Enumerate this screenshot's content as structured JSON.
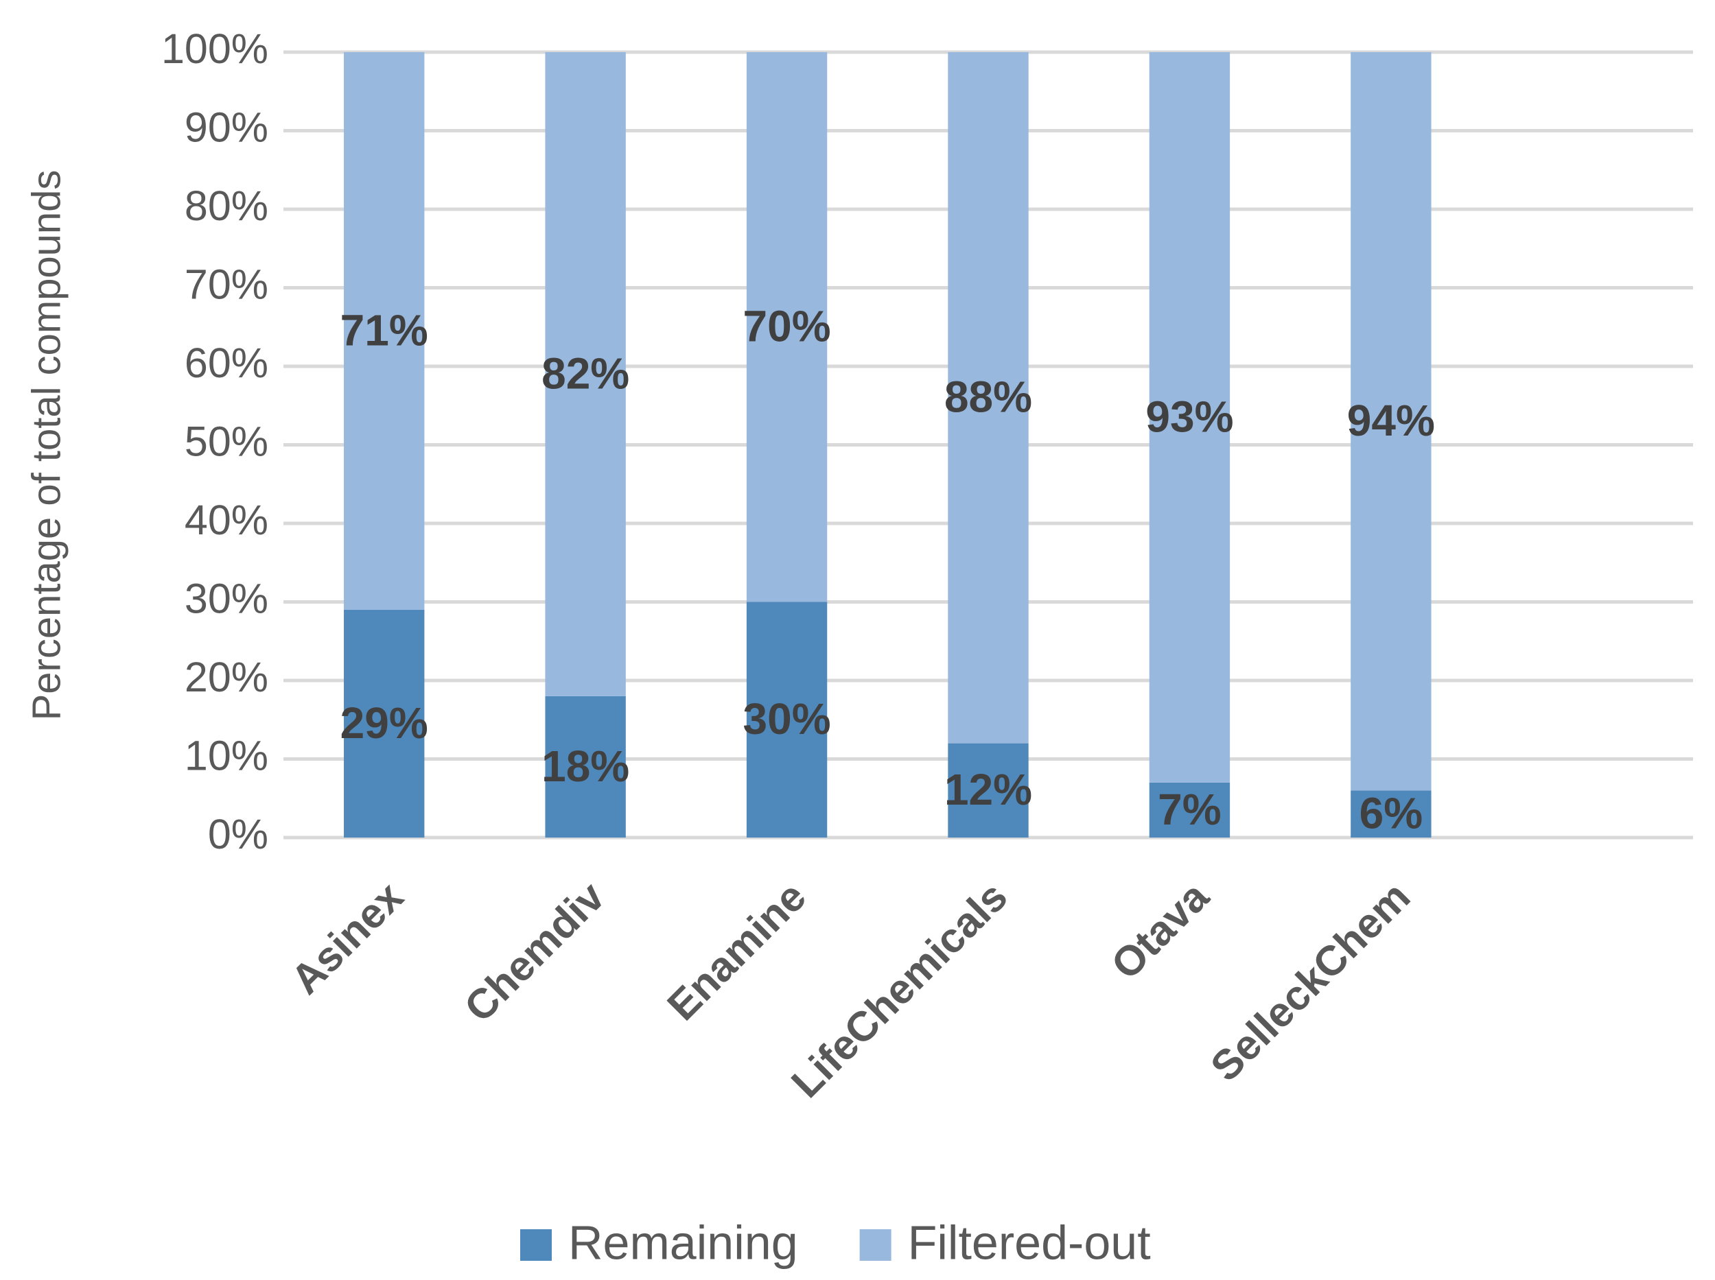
{
  "chart_data": {
    "type": "stacked_bar",
    "y_label": "Percentage of total compounds",
    "categories": [
      "Asinex",
      "Chemdiv",
      "Enamine",
      "LifeChemicals",
      "Otava",
      "SelleckChem",
      null
    ],
    "series": [
      {
        "name": "Remaining",
        "color": "#4f88bb",
        "values": [
          29,
          18,
          30,
          12,
          7,
          6,
          null
        ],
        "value_labels": [
          "29%",
          "18%",
          "30%",
          "12%",
          "7%",
          "6%",
          null
        ]
      },
      {
        "name": "Filtered-out",
        "color": "#98b8de",
        "values": [
          71,
          82,
          70,
          88,
          93,
          94,
          null
        ],
        "value_labels": [
          "71%",
          "82%",
          "70%",
          "88%",
          "93%",
          "94%",
          null
        ]
      }
    ],
    "ylim": [
      0,
      100
    ],
    "yticks": [
      {
        "value": 0,
        "label": "0%"
      },
      {
        "value": 10,
        "label": "10%"
      },
      {
        "value": 20,
        "label": "20%"
      },
      {
        "value": 30,
        "label": "30%"
      },
      {
        "value": 40,
        "label": "40%"
      },
      {
        "value": 50,
        "label": "50%"
      },
      {
        "value": 60,
        "label": "60%"
      },
      {
        "value": 70,
        "label": "70%"
      },
      {
        "value": 80,
        "label": "80%"
      },
      {
        "value": 90,
        "label": "90%"
      },
      {
        "value": 100,
        "label": "100%"
      }
    ],
    "grid": true,
    "legend": "bottom"
  }
}
